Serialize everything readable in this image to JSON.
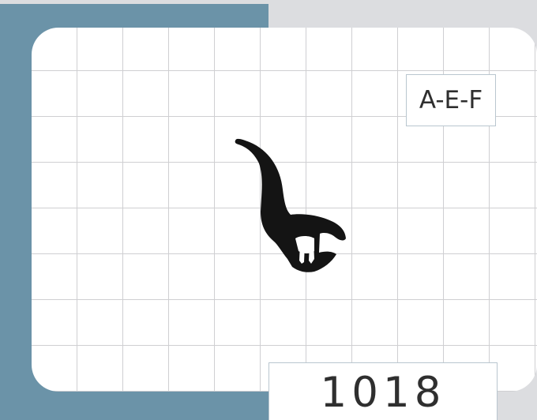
{
  "colors": {
    "accent": "#6b93a8",
    "background": "#dcdde0",
    "grid_line": "#cfcfd2",
    "profile_fill": "#141414",
    "text": "#2f2f2f"
  },
  "profile": {
    "code": "A-E-F",
    "number": "1018",
    "shape_icon": "rubber-seal-profile-icon"
  }
}
